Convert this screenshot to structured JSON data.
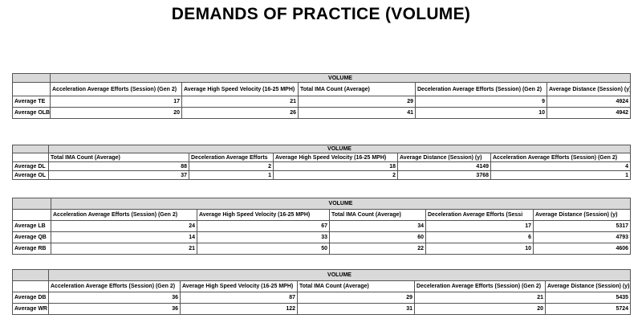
{
  "title": "DEMANDS OF PRACTICE (VOLUME)",
  "tables": [
    {
      "caption": "VOLUME",
      "headers": [
        "Acceleration Average Efforts (Session) (Gen 2)",
        "Average High Speed Velocity (16-25 MPH)",
        "Total IMA Count (Average)",
        "Deceleration Average Efforts (Session) (Gen 2)",
        "Average Distance (Session) (y)"
      ],
      "rows": [
        {
          "label": "Average TE",
          "values": [
            "17",
            "21",
            "29",
            "9",
            "4924"
          ]
        },
        {
          "label": "Average OLB",
          "values": [
            "20",
            "26",
            "41",
            "10",
            "4942"
          ]
        }
      ]
    },
    {
      "caption": "VOLUME",
      "headers": [
        "Total IMA Count (Average)",
        "Deceleration Average Efforts",
        "Average High Speed Velocity (16-25 MPH)",
        "Average Distance (Session) (y)",
        "Acceleration Average Efforts (Session) (Gen 2)"
      ],
      "rows": [
        {
          "label": "Average DL",
          "values": [
            "88",
            "2",
            "18",
            "4149",
            "4"
          ]
        },
        {
          "label": "Average OL",
          "values": [
            "37",
            "1",
            "2",
            "3768",
            "1"
          ]
        }
      ]
    },
    {
      "caption": "VOLUME",
      "headers": [
        "Acceleration Average Efforts (Session) (Gen 2)",
        "Average High Speed Velocity (16-25 MPH)",
        "Total IMA Count (Average)",
        "Deceleration Average Efforts (Sessi",
        "Average Distance (Session) (y)"
      ],
      "rows": [
        {
          "label": "Average LB",
          "values": [
            "24",
            "67",
            "34",
            "17",
            "5317"
          ]
        },
        {
          "label": "Average QB",
          "values": [
            "14",
            "33",
            "60",
            "6",
            "4793"
          ]
        },
        {
          "label": "Average RB",
          "values": [
            "21",
            "50",
            "22",
            "10",
            "4606"
          ]
        }
      ]
    },
    {
      "caption": "VOLUME",
      "headers": [
        "Acceleration Average Efforts (Session) (Gen 2)",
        "Average High Speed Velocity (16-25 MPH)",
        "Total IMA Count (Average)",
        "Deceleration Average Efforts (Session) (Gen 2)",
        "Average Distance (Session) (y)"
      ],
      "rows": [
        {
          "label": "Average DB",
          "values": [
            "36",
            "87",
            "29",
            "21",
            "5435"
          ]
        },
        {
          "label": "Average WR",
          "values": [
            "36",
            "122",
            "31",
            "20",
            "5724"
          ]
        }
      ]
    }
  ]
}
